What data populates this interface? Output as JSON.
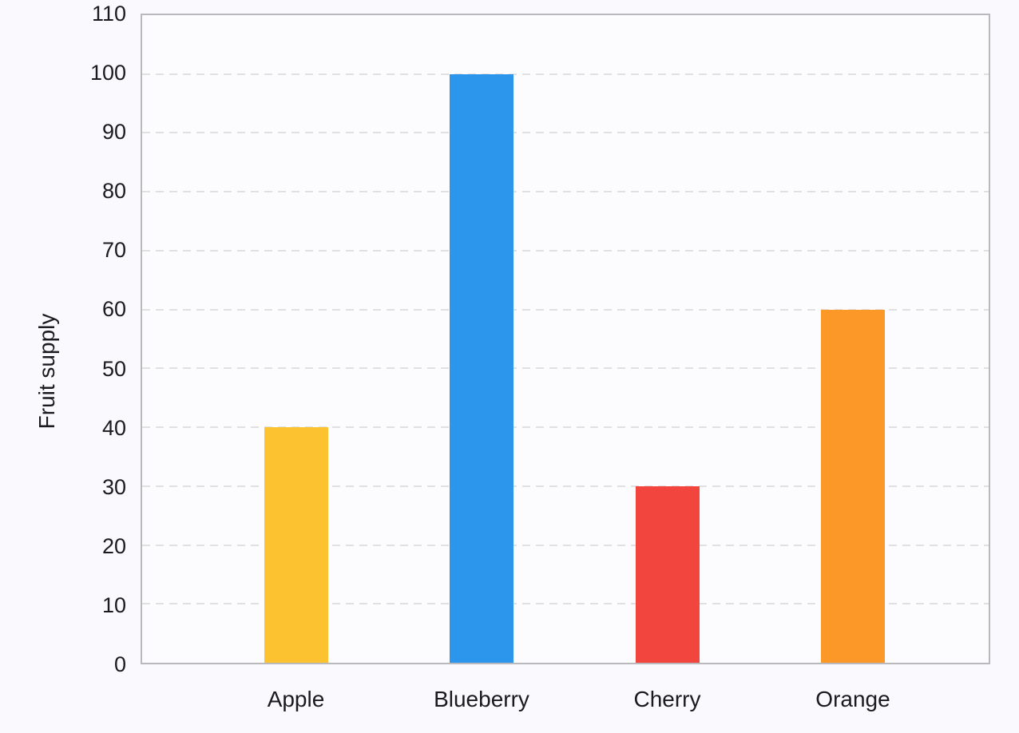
{
  "chart_data": {
    "type": "bar",
    "categories": [
      "Apple",
      "Blueberry",
      "Cherry",
      "Orange"
    ],
    "values": [
      40,
      100,
      30,
      60
    ],
    "bar_colors": [
      "#FDC22F",
      "#2B96EC",
      "#F2453D",
      "#FB9827"
    ],
    "title": "",
    "xlabel": "",
    "ylabel": "Fruit supply",
    "ylim": [
      0,
      110
    ],
    "ytick_interval": 10,
    "ytick_labels": [
      "0",
      "10",
      "20",
      "30",
      "40",
      "50",
      "60",
      "70",
      "80",
      "90",
      "100",
      "110"
    ],
    "grid": "horizontal-dashed",
    "legend_position": "none"
  },
  "colors": {
    "page_background": "#FAFAFE",
    "plot_background": "#FCFCFE",
    "axis_border": "#B9B9BD",
    "gridline": "#E0E0E0",
    "label_text": "#1B1B1D"
  }
}
